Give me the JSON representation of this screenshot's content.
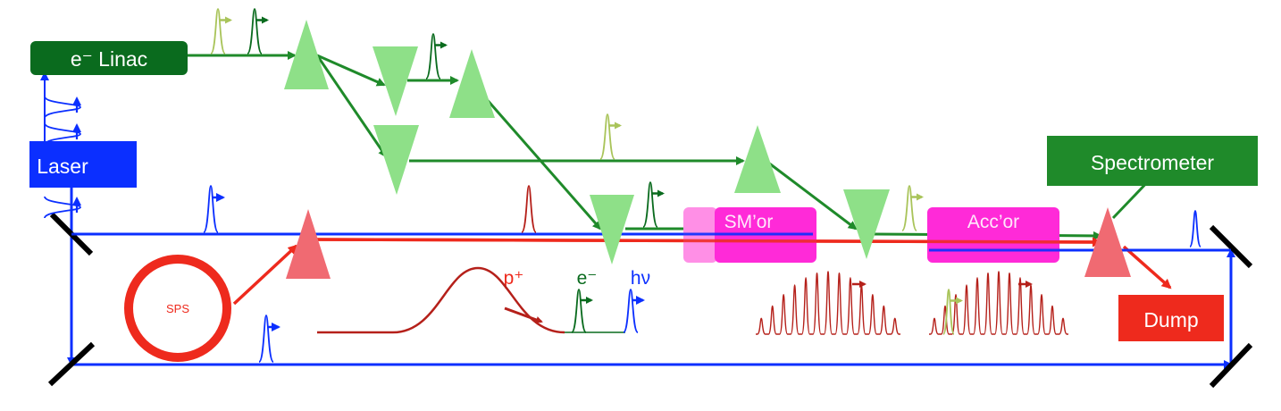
{
  "labels": {
    "linac": "e⁻ Linac",
    "laser": "Laser",
    "spectrometer": "Spectrometer",
    "dump": "Dump",
    "sps": "SPS",
    "smor": "SM’or",
    "accor": "Acc’or",
    "proton": "p⁺",
    "electron": "e⁻",
    "photon": "hν"
  },
  "colors": {
    "electron_dark": "#0a6b1e",
    "electron_beam": "#1f8a2a",
    "electron_light": "#a9c45a",
    "laser_blue": "#0b2fff",
    "proton_red": "#ee2a1d",
    "proton_dark": "#b5201a",
    "magenta": "#ff2ad8",
    "magenta_light": "#ff8fe6",
    "triangle_green": "#8ee088",
    "triangle_red": "#f06a72",
    "mirror": "#000000"
  }
}
